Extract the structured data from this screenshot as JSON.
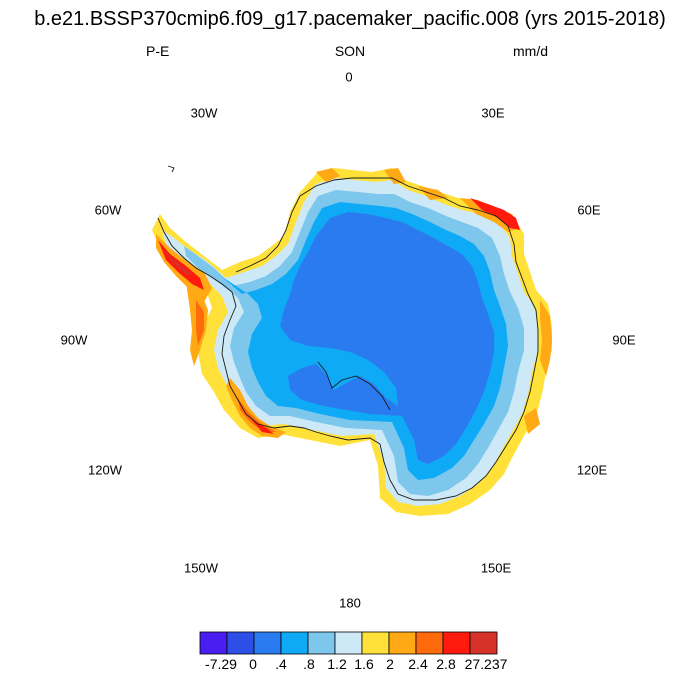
{
  "title": "b.e21.BSSP370cmip6.f09_g17.pacemaker_pacific.008 (yrs 2015-2018)",
  "subtitle": {
    "left": "P-E",
    "center": "SON",
    "right": "mm/d"
  },
  "longitude_labels": [
    "0",
    "30E",
    "60E",
    "90E",
    "120E",
    "150E",
    "180",
    "150W",
    "120W",
    "90W",
    "60W",
    "30W"
  ],
  "colorbar": {
    "labels": [
      "-7.29",
      "0",
      ".4",
      ".8",
      "1.2",
      "1.6",
      "2",
      "2.4",
      "2.8",
      "27.237"
    ],
    "colors": [
      "#4a1ef0",
      "#2d4fe8",
      "#2b7bf0",
      "#0faaf5",
      "#7dc6ec",
      "#cde8f6",
      "#ffe13a",
      "#ffa914",
      "#ff6a0c",
      "#ff1a0e",
      "#d6322a"
    ]
  },
  "chart_data": {
    "type": "heatmap",
    "projection": "south-polar-stereographic",
    "variable": "P-E",
    "season": "SON",
    "units": "mm/d",
    "levels": [
      -7.29,
      0,
      0.4,
      0.8,
      1.2,
      1.6,
      2,
      2.4,
      2.8,
      27.237
    ],
    "region_classes": {
      "interior_plateau": "0 to .4",
      "inner_slope": ".4 to .8",
      "mid_slope": ".8 to 1.2",
      "outer_slope": "1.2 to 1.6",
      "coastal_band": "1.6 to 2.4",
      "peninsula_and_amundsen_coast": "2.4 to 27.237"
    }
  }
}
